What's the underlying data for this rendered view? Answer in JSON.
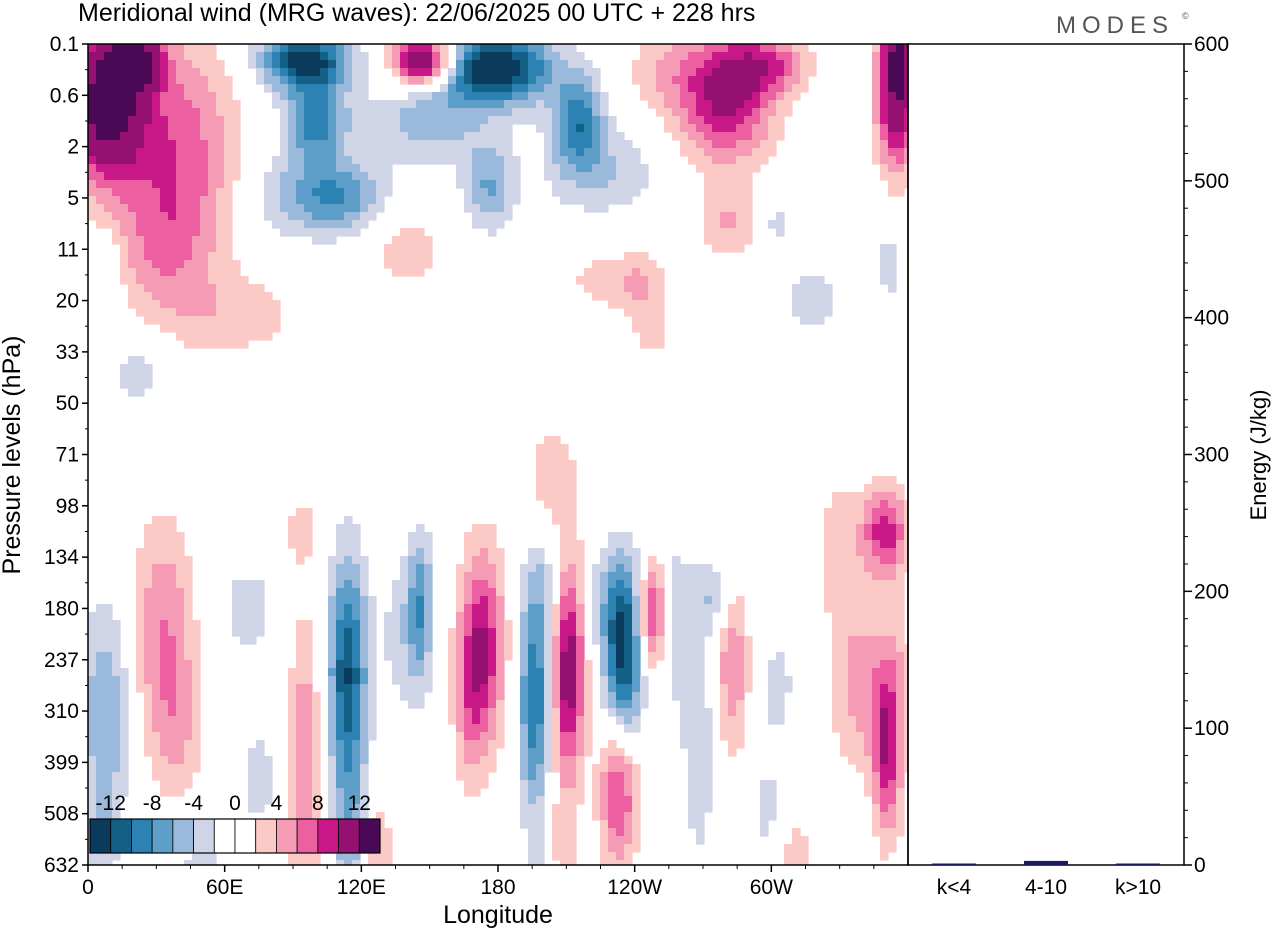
{
  "header": {
    "title": "Meridional wind (MRG waves):  22/06/2025  00 UTC  + 228 hrs",
    "logo": "MODES",
    "logo_mark": "©"
  },
  "colors": {
    "scale": [
      "#0a3b5c",
      "#135f86",
      "#2b82b3",
      "#5e9fca",
      "#9bb9da",
      "#cfd4e6",
      "#ffffff",
      "#ffffff",
      "#fbc9c6",
      "#f69bb5",
      "#ec5fa0",
      "#c81786",
      "#941071",
      "#4b0856"
    ]
  },
  "chart_data": [
    {
      "type": "heatmap",
      "title": "Meridional wind (MRG waves):  22/06/2025  00 UTC  + 228 hrs",
      "xlabel": "Longitude",
      "ylabel": "Pressure levels (hPa)",
      "x_ticks": [
        "0",
        "60E",
        "120E",
        "180",
        "120W",
        "60W"
      ],
      "y_ticks": [
        "0.1",
        "0.6",
        "2",
        "5",
        "11",
        "20",
        "33",
        "50",
        "71",
        "98",
        "134",
        "180",
        "237",
        "310",
        "399",
        "508",
        "632"
      ],
      "colorbar": {
        "labels": [
          "-12",
          "-8",
          "-4",
          "0",
          "4",
          "8",
          "12"
        ],
        "levels": [
          -14,
          -12,
          -10,
          -8,
          -6,
          -4,
          -2,
          0,
          2,
          4,
          6,
          8,
          10,
          12,
          14
        ]
      },
      "features": [
        {
          "lon": 8,
          "lev": 1.2,
          "value": 16,
          "slev": 1.0,
          "slon": 12
        },
        {
          "lon": 20,
          "lev": 0.3,
          "value": 14,
          "slev": 0.4,
          "slon": 8
        },
        {
          "lon": 40,
          "lev": 2.0,
          "value": 7,
          "slev": 1.6,
          "slon": 18
        },
        {
          "lon": 32,
          "lev": 4.0,
          "value": 4,
          "slev": 1.0,
          "slon": 16
        },
        {
          "lon": 65,
          "lev": 5.3,
          "value": 3,
          "slev": 0.6,
          "slon": 22
        },
        {
          "lon": 95,
          "lev": 0.3,
          "value": -13,
          "slev": 0.4,
          "slon": 14
        },
        {
          "lon": 100,
          "lev": 1.5,
          "value": -9,
          "slev": 0.6,
          "slon": 10
        },
        {
          "lon": 110,
          "lev": 3.0,
          "value": -8,
          "slev": 0.5,
          "slon": 14
        },
        {
          "lon": 85,
          "lev": 3.0,
          "value": -3,
          "slev": 0.6,
          "slon": 12
        },
        {
          "lon": 148,
          "lev": 0.35,
          "value": 16,
          "slev": 0.35,
          "slon": 10
        },
        {
          "lon": 178,
          "lev": 0.45,
          "value": -15,
          "slev": 0.5,
          "slon": 18
        },
        {
          "lon": 150,
          "lev": 1.5,
          "value": -5,
          "slev": 0.6,
          "slon": 18
        },
        {
          "lon": 176,
          "lev": 2.8,
          "value": -6,
          "slev": 0.6,
          "slon": 8
        },
        {
          "lon": 140,
          "lev": 4.0,
          "value": 3,
          "slev": 0.6,
          "slon": 14
        },
        {
          "lon": 215,
          "lev": 1.5,
          "value": -9,
          "slev": 0.6,
          "slon": 8
        },
        {
          "lon": 225,
          "lev": 2.5,
          "value": -4,
          "slev": 0.6,
          "slon": 18
        },
        {
          "lon": 252,
          "lev": 0.5,
          "value": 3,
          "slev": 0.6,
          "slon": 12
        },
        {
          "lon": 280,
          "lev": 1.0,
          "value": 11,
          "slev": 0.9,
          "slon": 15
        },
        {
          "lon": 300,
          "lev": 0.4,
          "value": 6,
          "slev": 0.4,
          "slon": 12
        },
        {
          "lon": 282,
          "lev": 3.5,
          "value": 4,
          "slev": 0.5,
          "slon": 10
        },
        {
          "lon": 302,
          "lev": 3.5,
          "value": -3,
          "slev": 0.4,
          "slon": 6
        },
        {
          "lon": 244,
          "lev": 4.7,
          "value": 4,
          "slev": 0.5,
          "slon": 8
        },
        {
          "lon": 318,
          "lev": 5.0,
          "value": -3,
          "slev": 0.5,
          "slon": 10
        },
        {
          "lon": 355,
          "lev": 1.0,
          "value": 14,
          "slev": 1.0,
          "slon": 6
        },
        {
          "lon": 358,
          "lev": 0.2,
          "value": 6,
          "slev": 0.4,
          "slon": 6
        },
        {
          "lon": 352,
          "lev": 4.3,
          "value": -3,
          "slev": 0.6,
          "slon": 5
        },
        {
          "lon": 225,
          "lev": 4.6,
          "value": 3,
          "slev": 0.4,
          "slon": 10
        },
        {
          "lon": 248,
          "lev": 5.7,
          "value": 3,
          "slev": 0.3,
          "slon": 6
        },
        {
          "lon": 22,
          "lev": 6.4,
          "value": -3,
          "slev": 0.6,
          "slon": 10
        },
        {
          "lon": 8,
          "lev": 4.5,
          "value": -3,
          "slev": 0.6,
          "slon": 5
        },
        {
          "lon": 203,
          "lev": 8.5,
          "value": 3,
          "slev": 0.9,
          "slon": 10
        },
        {
          "lon": 200,
          "lev": 10.5,
          "value": -3,
          "slev": 0.8,
          "slon": 6
        },
        {
          "lon": 228,
          "lev": 10.8,
          "value": -3,
          "slev": 0.7,
          "slon": 8
        },
        {
          "lon": 250,
          "lev": 10.5,
          "value": -4,
          "slev": 0.8,
          "slon": 9
        },
        {
          "lon": 330,
          "lev": 9.8,
          "value": 3,
          "slev": 1.1,
          "slon": 8
        },
        {
          "lon": 350,
          "lev": 9.5,
          "value": 9,
          "slev": 0.6,
          "slon": 7
        },
        {
          "lon": 275,
          "lev": 10.8,
          "value": -4,
          "slev": 0.5,
          "slon": 7
        },
        {
          "lon": 8,
          "lev": 13.0,
          "value": -6,
          "slev": 1.5,
          "slon": 8
        },
        {
          "lon": 6,
          "lev": 15.5,
          "value": -3,
          "slev": 0.8,
          "slon": 5
        },
        {
          "lon": 33,
          "lev": 11.5,
          "value": 6,
          "slev": 1.6,
          "slon": 10
        },
        {
          "lon": 40,
          "lev": 13.5,
          "value": 3,
          "slev": 1.0,
          "slon": 8
        },
        {
          "lon": 50,
          "lev": 16.0,
          "value": -3,
          "slev": 0.8,
          "slon": 8
        },
        {
          "lon": 75,
          "lev": 14.3,
          "value": -3,
          "slev": 0.8,
          "slon": 6
        },
        {
          "lon": 70,
          "lev": 11.0,
          "value": -3,
          "slev": 0.7,
          "slon": 10
        },
        {
          "lon": 93,
          "lev": 9.5,
          "value": 3,
          "slev": 0.5,
          "slon": 5
        },
        {
          "lon": 95,
          "lev": 14.0,
          "value": 6,
          "slev": 2.0,
          "slon": 5
        },
        {
          "lon": 114,
          "lev": 12.3,
          "value": -12,
          "slev": 1.6,
          "slon": 6
        },
        {
          "lon": 115,
          "lev": 15.5,
          "value": -5,
          "slev": 1.0,
          "slon": 5
        },
        {
          "lon": 127,
          "lev": 15.8,
          "value": 4,
          "slev": 0.8,
          "slon": 5
        },
        {
          "lon": 138,
          "lev": 11.5,
          "value": -3,
          "slev": 1.2,
          "slon": 7
        },
        {
          "lon": 146,
          "lev": 11.0,
          "value": -7,
          "slev": 1.0,
          "slon": 4
        },
        {
          "lon": 173,
          "lev": 11.8,
          "value": 10,
          "slev": 1.4,
          "slon": 7
        },
        {
          "lon": 167,
          "lev": 13.0,
          "value": 3,
          "slev": 1.2,
          "slon": 5
        },
        {
          "lon": 196,
          "lev": 12.8,
          "value": -10,
          "slev": 1.5,
          "slon": 5
        },
        {
          "lon": 198,
          "lev": 16.2,
          "value": -3,
          "slev": 0.6,
          "slon": 5
        },
        {
          "lon": 211,
          "lev": 12.2,
          "value": 12,
          "slev": 1.5,
          "slon": 5
        },
        {
          "lon": 207,
          "lev": 15.8,
          "value": 3,
          "slev": 0.8,
          "slon": 5
        },
        {
          "lon": 235,
          "lev": 12.0,
          "value": -13,
          "slev": 1.2,
          "slon": 6
        },
        {
          "lon": 233,
          "lev": 14.5,
          "value": 9,
          "slev": 1.1,
          "slon": 6
        },
        {
          "lon": 248,
          "lev": 11.0,
          "value": 13,
          "slev": 0.8,
          "slon": 5
        },
        {
          "lon": 255,
          "lev": 11.8,
          "value": -3,
          "slev": 1.0,
          "slon": 5
        },
        {
          "lon": 268,
          "lev": 13.7,
          "value": -4,
          "slev": 1.6,
          "slon": 5
        },
        {
          "lon": 283,
          "lev": 12.0,
          "value": 6,
          "slev": 1.3,
          "slon": 5
        },
        {
          "lon": 298,
          "lev": 15.0,
          "value": -3,
          "slev": 0.8,
          "slon": 5
        },
        {
          "lon": 303,
          "lev": 12.5,
          "value": -3,
          "slev": 0.8,
          "slon": 5
        },
        {
          "lon": 310,
          "lev": 16.0,
          "value": 3,
          "slev": 0.8,
          "slon": 7
        },
        {
          "lon": 340,
          "lev": 12.5,
          "value": 5,
          "slev": 1.2,
          "slon": 10
        },
        {
          "lon": 350,
          "lev": 13.8,
          "value": 8,
          "slev": 1.2,
          "slon": 4
        },
        {
          "lon": 356,
          "lev": 13.0,
          "value": 3,
          "slev": 1.6,
          "slon": 4
        }
      ]
    },
    {
      "type": "bar",
      "ylabel": "Energy (J/kg)",
      "categories": [
        "k<4",
        "4-10",
        "k>10"
      ],
      "values": [
        1,
        3,
        0.5
      ],
      "ylim": [
        0,
        600
      ],
      "y_ticks": [
        "0",
        "100",
        "200",
        "300",
        "400",
        "500",
        "600"
      ],
      "bar_color": "#1a1a5e"
    }
  ]
}
